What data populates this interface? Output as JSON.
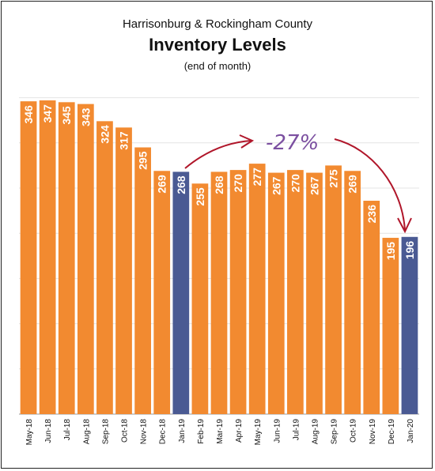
{
  "chart_data": {
    "type": "bar",
    "title": "Harrisonburg & Rockingham County",
    "subtitle": "Inventory Levels",
    "note": "(end of month)",
    "categories": [
      "May-18",
      "Jun-18",
      "Jul-18",
      "Aug-18",
      "Sep-18",
      "Oct-18",
      "Nov-18",
      "Dec-18",
      "Jan-19",
      "Feb-19",
      "Mar-19",
      "Apr-19",
      "May-19",
      "Jun-19",
      "Jul-19",
      "Aug-19",
      "Sep-19",
      "Oct-19",
      "Nov-19",
      "Dec-19",
      "Jan-20"
    ],
    "values": [
      346,
      347,
      345,
      343,
      324,
      317,
      295,
      269,
      268,
      255,
      268,
      270,
      277,
      267,
      270,
      267,
      275,
      269,
      236,
      195,
      196
    ],
    "highlight_indices": [
      8,
      20
    ],
    "colors": {
      "default": "#f28a30",
      "highlight": "#4a5a93"
    },
    "ylim": [
      0,
      350
    ],
    "grid": true,
    "annotation": "-27%"
  }
}
